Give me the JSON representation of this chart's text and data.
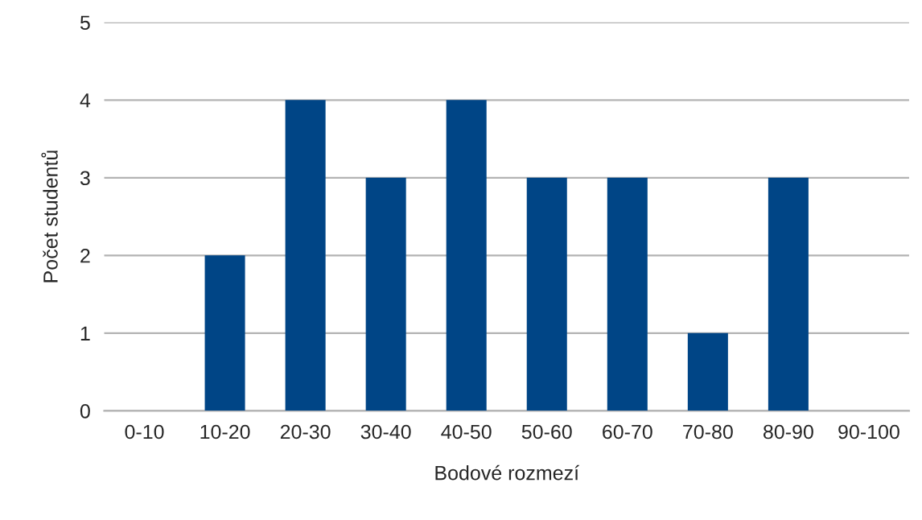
{
  "chart_data": {
    "type": "bar",
    "xlabel": "Bodové rozmezí",
    "ylabel": "Počet studentů",
    "categories": [
      "0-10",
      "10-20",
      "20-30",
      "30-40",
      "40-50",
      "50-60",
      "60-70",
      "70-80",
      "80-90",
      "90-100"
    ],
    "values": [
      0,
      2,
      4,
      3,
      4,
      3,
      3,
      1,
      3,
      0
    ],
    "color": "#004586",
    "ylim": [
      0,
      5
    ],
    "yticks": [
      0,
      1,
      2,
      3,
      4,
      5
    ],
    "grid": "y"
  }
}
